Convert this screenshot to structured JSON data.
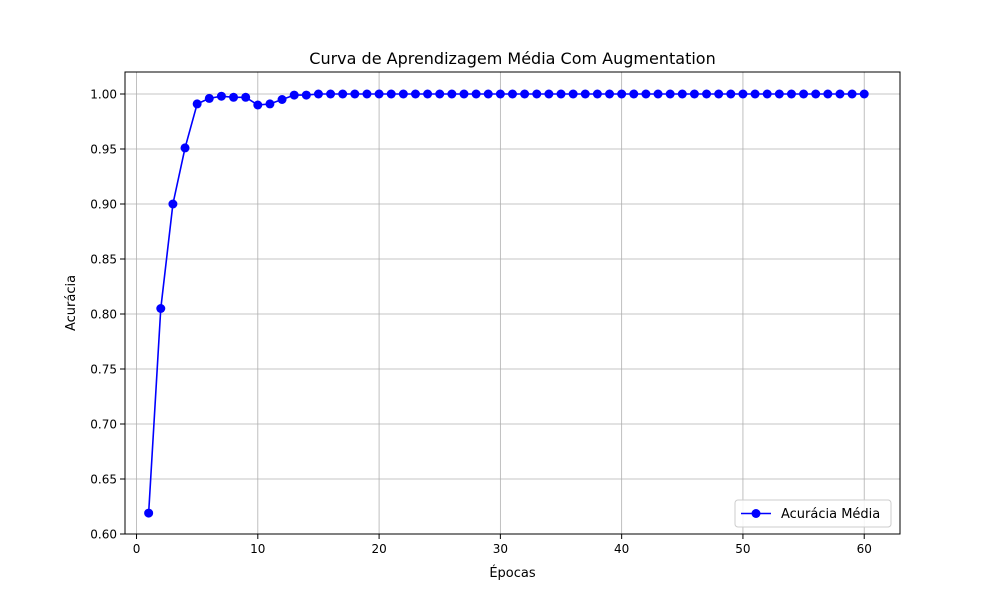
{
  "chart_data": {
    "type": "line",
    "title": "Curva de Aprendizagem Média Com Augmentation",
    "xlabel": "Épocas",
    "ylabel": "Acurácia",
    "xlim": [
      -0.95,
      62.95
    ],
    "ylim": [
      0.6,
      1.02
    ],
    "x_ticks": [
      0,
      10,
      20,
      30,
      40,
      50,
      60
    ],
    "x_tick_labels": [
      "0",
      "10",
      "20",
      "30",
      "40",
      "50",
      "60"
    ],
    "y_ticks": [
      0.6,
      0.65,
      0.7,
      0.75,
      0.8,
      0.85,
      0.9,
      0.95,
      1.0
    ],
    "y_tick_labels": [
      "0.60",
      "0.65",
      "0.70",
      "0.75",
      "0.80",
      "0.85",
      "0.90",
      "0.95",
      "1.00"
    ],
    "grid": true,
    "legend_position": "lower-right",
    "series": [
      {
        "name": "Acurácia Média",
        "color": "#0000ff",
        "marker": "circle",
        "x": [
          1,
          2,
          3,
          4,
          5,
          6,
          7,
          8,
          9,
          10,
          11,
          12,
          13,
          14,
          15,
          16,
          17,
          18,
          19,
          20,
          21,
          22,
          23,
          24,
          25,
          26,
          27,
          28,
          29,
          30,
          31,
          32,
          33,
          34,
          35,
          36,
          37,
          38,
          39,
          40,
          41,
          42,
          43,
          44,
          45,
          46,
          47,
          48,
          49,
          50,
          51,
          52,
          53,
          54,
          55,
          56,
          57,
          58,
          59,
          60
        ],
        "values": [
          0.619,
          0.805,
          0.9,
          0.951,
          0.991,
          0.996,
          0.998,
          0.997,
          0.997,
          0.99,
          0.991,
          0.995,
          0.999,
          0.999,
          1.0,
          1.0,
          1.0,
          1.0,
          1.0,
          1.0,
          1.0,
          1.0,
          1.0,
          1.0,
          1.0,
          1.0,
          1.0,
          1.0,
          1.0,
          1.0,
          1.0,
          1.0,
          1.0,
          1.0,
          1.0,
          1.0,
          1.0,
          1.0,
          1.0,
          1.0,
          1.0,
          1.0,
          1.0,
          1.0,
          1.0,
          1.0,
          1.0,
          1.0,
          1.0,
          1.0,
          1.0,
          1.0,
          1.0,
          1.0,
          1.0,
          1.0,
          1.0,
          1.0,
          1.0,
          1.0
        ]
      }
    ]
  }
}
